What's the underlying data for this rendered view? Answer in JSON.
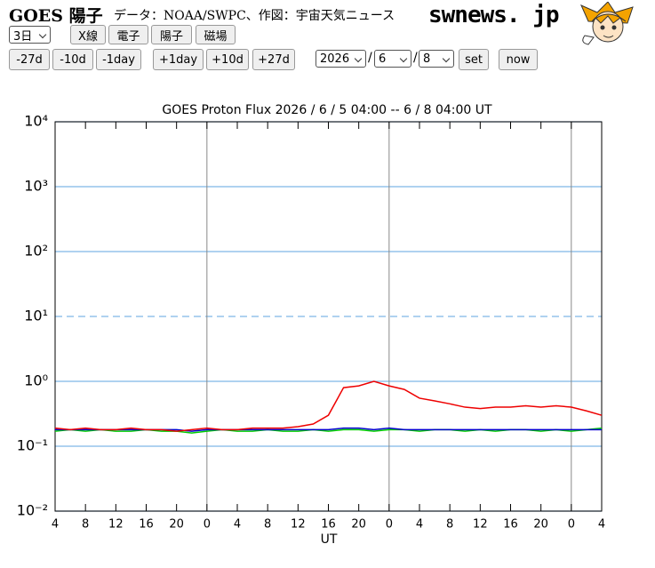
{
  "header": {
    "title": "GOES 陽子",
    "credit": "データ：NOAA/SWPC、作図：宇宙天気ニュース",
    "logo": "swnews. jp"
  },
  "controls": {
    "period": "3日",
    "types": [
      "X線",
      "電子",
      "陽子",
      "磁場"
    ],
    "back": [
      "-27d",
      "-10d",
      "-1day"
    ],
    "forward": [
      "+1day",
      "+10d",
      "+27d"
    ],
    "year": "2026",
    "month": "6",
    "day": "8",
    "separator": "/",
    "set": "set",
    "now": "now"
  },
  "chart_data": {
    "type": "line",
    "title": "GOES Proton Flux   2026 / 6 / 5   04:00 --  6 / 8   04:00    UT",
    "x_label": "UT",
    "log_y": true,
    "ylim": [
      0.01,
      10000
    ],
    "yticks": [
      {
        "value": 0.01,
        "label": "10⁻²"
      },
      {
        "value": 0.1,
        "label": "10⁻¹"
      },
      {
        "value": 1,
        "label": "10⁰"
      },
      {
        "value": 10,
        "label": "10¹",
        "style": "dashed"
      },
      {
        "value": 100,
        "label": "10²"
      },
      {
        "value": 1000,
        "label": "10³"
      },
      {
        "value": 10000,
        "label": "10⁴"
      }
    ],
    "xlim": [
      4,
      76
    ],
    "xticks": [
      4,
      8,
      12,
      16,
      20,
      {
        "value": 24,
        "label": "0",
        "grid": true
      },
      {
        "value": 28,
        "label": "4"
      },
      {
        "value": 32,
        "label": "8"
      },
      {
        "value": 36,
        "label": "12"
      },
      {
        "value": 40,
        "label": "16"
      },
      {
        "value": 44,
        "label": "20"
      },
      {
        "value": 48,
        "label": "0",
        "grid": true
      },
      {
        "value": 52,
        "label": "4"
      },
      {
        "value": 56,
        "label": "8"
      },
      {
        "value": 60,
        "label": "12"
      },
      {
        "value": 64,
        "label": "16"
      },
      {
        "value": 68,
        "label": "20"
      },
      {
        "value": 72,
        "label": "0",
        "grid": true
      },
      {
        "value": 76,
        "label": "4"
      }
    ],
    "x": [
      4,
      6,
      8,
      10,
      12,
      14,
      16,
      18,
      20,
      22,
      24,
      26,
      28,
      30,
      32,
      34,
      36,
      38,
      40,
      42,
      44,
      46,
      48,
      50,
      52,
      54,
      56,
      58,
      60,
      62,
      64,
      66,
      68,
      70,
      72,
      74,
      76
    ],
    "series": [
      {
        "color": "#00cc00",
        "values": [
          0.17,
          0.18,
          0.17,
          0.18,
          0.17,
          0.17,
          0.18,
          0.17,
          0.17,
          0.16,
          0.17,
          0.18,
          0.17,
          0.17,
          0.18,
          0.17,
          0.17,
          0.18,
          0.17,
          0.18,
          0.18,
          0.17,
          0.18,
          0.18,
          0.17,
          0.18,
          0.18,
          0.17,
          0.18,
          0.17,
          0.18,
          0.18,
          0.17,
          0.18,
          0.17,
          0.18,
          0.19
        ]
      },
      {
        "color": "#0000cc",
        "values": [
          0.18,
          0.18,
          0.18,
          0.18,
          0.18,
          0.18,
          0.18,
          0.18,
          0.18,
          0.17,
          0.18,
          0.18,
          0.18,
          0.18,
          0.18,
          0.18,
          0.18,
          0.18,
          0.18,
          0.19,
          0.19,
          0.18,
          0.19,
          0.18,
          0.18,
          0.18,
          0.18,
          0.18,
          0.18,
          0.18,
          0.18,
          0.18,
          0.18,
          0.18,
          0.18,
          0.18,
          0.18
        ]
      },
      {
        "color": "#ee0000",
        "values": [
          0.19,
          0.18,
          0.19,
          0.18,
          0.18,
          0.19,
          0.18,
          0.18,
          0.17,
          0.18,
          0.19,
          0.18,
          0.18,
          0.19,
          0.19,
          0.19,
          0.2,
          0.22,
          0.3,
          0.8,
          0.85,
          1.0,
          0.85,
          0.75,
          0.55,
          0.5,
          0.45,
          0.4,
          0.38,
          0.4,
          0.4,
          0.42,
          0.4,
          0.42,
          0.4,
          0.35,
          0.3
        ]
      }
    ]
  }
}
